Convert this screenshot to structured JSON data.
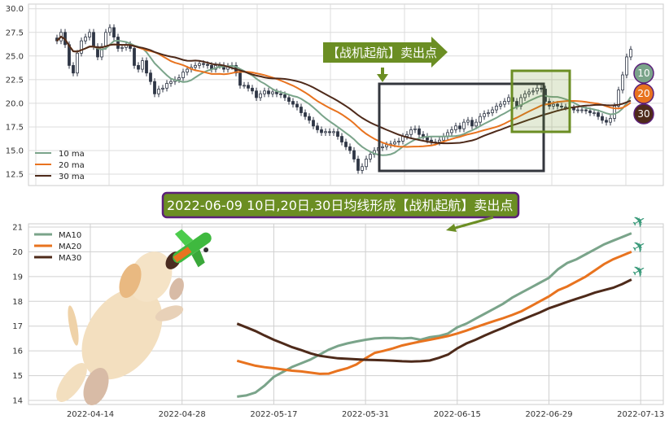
{
  "colors": {
    "ma10": "#7aa48a",
    "ma20": "#e8731f",
    "ma30": "#4e2a1a",
    "candle": "#2f3645",
    "callout": "#6b8e23",
    "banner_border": "#5b1f7a",
    "box_dark": "#33363d",
    "box_green": "#6b8e23"
  },
  "annotations": {
    "callout": "【战机起航】卖出点",
    "banner": "2022-06-09 10日,20日,30日均线形成【战机起航】卖出点",
    "badges": [
      "10",
      "20",
      "30"
    ],
    "icons": [
      "plane-icon",
      "dog-illustration",
      "toy-plane-icon"
    ]
  },
  "chart_data": [
    {
      "type": "candlestick",
      "ylim": [
        11.3,
        30.5
      ],
      "y_ticks": [
        "12.5",
        "15.0",
        "17.5",
        "20.0",
        "22.5",
        "25.0",
        "27.5",
        "30.0"
      ],
      "grid": true,
      "legend": "bottom-left",
      "close": [
        26.6,
        27.5,
        26.2,
        24.0,
        23.2,
        25.3,
        26.6,
        27.0,
        27.5,
        26.0,
        24.9,
        26.0,
        27.5,
        28.0,
        27.0,
        25.8,
        25.9,
        26.2,
        25.8,
        24.0,
        23.6,
        24.5,
        23.2,
        22.3,
        21.0,
        21.5,
        21.6,
        22.1,
        22.3,
        22.5,
        22.7,
        23.3,
        23.6,
        23.8,
        24.0,
        24.2,
        24.1,
        24.0,
        23.6,
        24.0,
        24.0,
        23.6,
        23.9,
        24.0,
        23.2,
        21.9,
        21.9,
        21.6,
        21.3,
        20.6,
        21.0,
        21.3,
        21.0,
        21.2,
        21.0,
        20.9,
        20.6,
        20.2,
        19.9,
        19.6,
        19.0,
        18.6,
        18.2,
        17.6,
        17.2,
        16.9,
        17.0,
        16.9,
        17.0,
        16.5,
        15.9,
        15.4,
        15.0,
        14.1,
        12.9,
        13.3,
        14.1,
        14.6,
        15.0,
        15.3,
        15.4,
        15.6,
        15.7,
        15.9,
        16.0,
        16.5,
        16.7,
        17.2,
        17.3,
        16.7,
        16.5,
        16.1,
        15.9,
        15.9,
        16.1,
        16.5,
        16.9,
        17.2,
        17.6,
        17.3,
        18.0,
        18.2,
        17.6,
        18.0,
        18.6,
        18.9,
        19.0,
        19.3,
        19.7,
        19.9,
        20.2,
        20.6,
        20.2,
        19.7,
        20.6,
        21.0,
        21.2,
        21.3,
        21.6,
        21.5,
        20.2,
        19.7,
        19.9,
        19.7,
        19.6,
        19.6,
        19.5,
        19.3,
        19.3,
        19.3,
        19.2,
        19.0,
        19.0,
        18.6,
        18.2,
        18.0,
        18.4,
        19.7,
        21.4,
        23.0,
        24.9,
        25.7
      ],
      "series": [
        {
          "name": "10 ma",
          "window": 10
        },
        {
          "name": "20 ma",
          "window": 20
        },
        {
          "name": "30 ma",
          "window": 30
        }
      ]
    },
    {
      "type": "line",
      "ylim": [
        13.85,
        21.05
      ],
      "y_ticks": [
        "14",
        "15",
        "16",
        "17",
        "18",
        "19",
        "20",
        "21"
      ],
      "x_ticks": [
        "2022-04-14",
        "2022-04-28",
        "2022-05-17",
        "2022-05-31",
        "2022-06-15",
        "2022-06-29",
        "2022-07-13"
      ],
      "grid": true,
      "legend": "top-left",
      "x": [
        "2022-05-11",
        "2022-05-12",
        "2022-05-13",
        "2022-05-16",
        "2022-05-17",
        "2022-05-18",
        "2022-05-19",
        "2022-05-20",
        "2022-05-23",
        "2022-05-24",
        "2022-05-25",
        "2022-05-26",
        "2022-05-27",
        "2022-05-30",
        "2022-05-31",
        "2022-06-01",
        "2022-06-02",
        "2022-06-06",
        "2022-06-07",
        "2022-06-08",
        "2022-06-09",
        "2022-06-10",
        "2022-06-13",
        "2022-06-14",
        "2022-06-15",
        "2022-06-16",
        "2022-06-17",
        "2022-06-20",
        "2022-06-21",
        "2022-06-22",
        "2022-06-23",
        "2022-06-24",
        "2022-06-27",
        "2022-06-28",
        "2022-06-29",
        "2022-06-30",
        "2022-07-01",
        "2022-07-04",
        "2022-07-05",
        "2022-07-06",
        "2022-07-07",
        "2022-07-08",
        "2022-07-11",
        "2022-07-12"
      ],
      "series": [
        {
          "name": "MA10",
          "values": [
            14.15,
            14.2,
            14.32,
            14.6,
            14.95,
            15.15,
            15.35,
            15.5,
            15.65,
            15.85,
            16.05,
            16.2,
            16.3,
            16.38,
            16.45,
            16.5,
            16.52,
            16.52,
            16.5,
            16.52,
            16.45,
            16.55,
            16.6,
            16.7,
            16.95,
            17.1,
            17.3,
            17.5,
            17.7,
            17.9,
            18.15,
            18.35,
            18.55,
            18.75,
            18.95,
            19.3,
            19.55,
            19.7,
            19.9,
            20.1,
            20.3,
            20.45,
            20.6,
            20.75
          ]
        },
        {
          "name": "MA20",
          "values": [
            15.6,
            15.5,
            15.4,
            15.34,
            15.3,
            15.25,
            15.2,
            15.17,
            15.12,
            15.07,
            15.08,
            15.2,
            15.3,
            15.45,
            15.7,
            15.92,
            16.0,
            16.1,
            16.22,
            16.3,
            16.38,
            16.45,
            16.52,
            16.6,
            16.7,
            16.82,
            16.95,
            17.08,
            17.2,
            17.32,
            17.45,
            17.6,
            17.8,
            18.0,
            18.2,
            18.45,
            18.6,
            18.8,
            19.0,
            19.25,
            19.5,
            19.7,
            19.85,
            20.0
          ]
        },
        {
          "name": "MA30",
          "values": [
            17.1,
            16.95,
            16.8,
            16.62,
            16.45,
            16.3,
            16.15,
            16.03,
            15.9,
            15.8,
            15.75,
            15.7,
            15.68,
            15.66,
            15.64,
            15.63,
            15.62,
            15.6,
            15.58,
            15.57,
            15.58,
            15.61,
            15.72,
            15.85,
            16.1,
            16.3,
            16.45,
            16.62,
            16.78,
            16.93,
            17.1,
            17.25,
            17.4,
            17.55,
            17.72,
            17.85,
            17.98,
            18.1,
            18.22,
            18.35,
            18.45,
            18.55,
            18.7,
            18.88
          ]
        }
      ]
    }
  ]
}
